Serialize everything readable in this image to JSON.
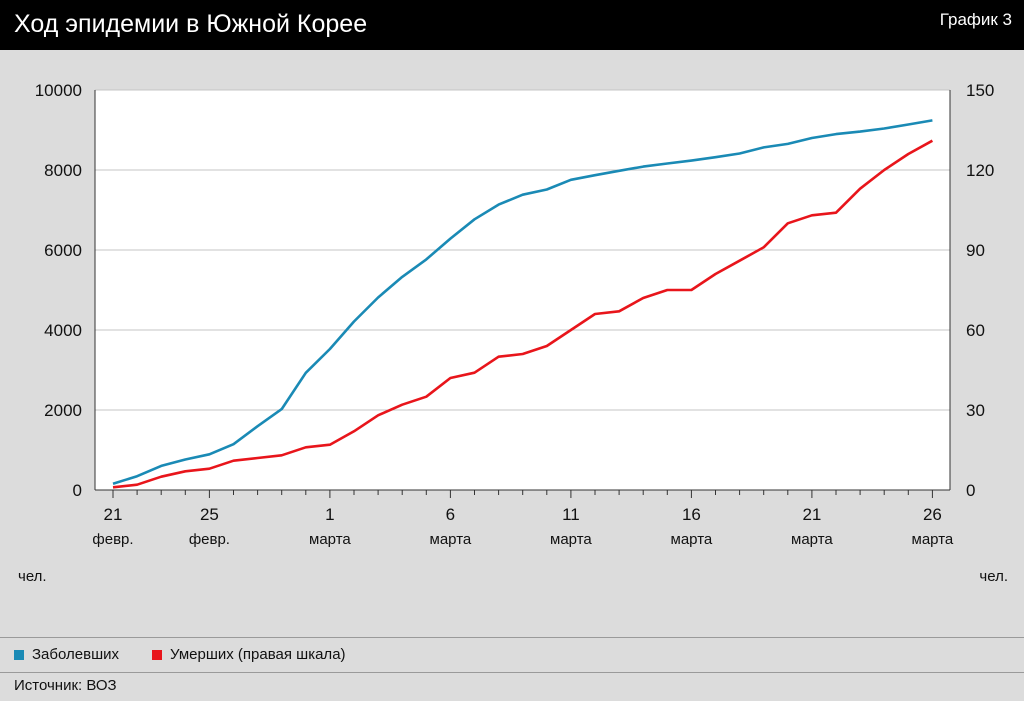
{
  "header": {
    "title": "Ход эпидемии в Южной Корее",
    "badge": "График 3"
  },
  "footer": {
    "source": "Источник: ВОЗ"
  },
  "colors": {
    "infected": "#1a8ab5",
    "deaths": "#e8151b"
  },
  "chart_data": {
    "type": "line",
    "y_left": {
      "label": "чел.",
      "ticks": [
        "0",
        "2000",
        "4000",
        "6000",
        "8000",
        "10000"
      ],
      "range": [
        0,
        10000
      ]
    },
    "y_right": {
      "label": "чел.",
      "ticks": [
        "0",
        "30",
        "60",
        "90",
        "120",
        "150"
      ],
      "range": [
        0,
        150
      ]
    },
    "x_ticks": [
      {
        "day": "21",
        "month": "февр."
      },
      {
        "day": "25",
        "month": "февр."
      },
      {
        "day": "1",
        "month": "марта"
      },
      {
        "day": "6",
        "month": "марта"
      },
      {
        "day": "11",
        "month": "марта"
      },
      {
        "day": "16",
        "month": "марта"
      },
      {
        "day": "21",
        "month": "марта"
      },
      {
        "day": "26",
        "month": "марта"
      }
    ],
    "x_dates": [
      "21 февр.",
      "22 февр.",
      "23 февр.",
      "24 февр.",
      "25 февр.",
      "26 февр.",
      "27 февр.",
      "28 февр.",
      "29 февр.",
      "1 марта",
      "2 марта",
      "3 марта",
      "4 марта",
      "5 марта",
      "6 марта",
      "7 марта",
      "8 марта",
      "9 марта",
      "10 марта",
      "11 марта",
      "12 марта",
      "13 марта",
      "14 марта",
      "15 марта",
      "16 марта",
      "17 марта",
      "18 марта",
      "19 марта",
      "20 марта",
      "21 марта",
      "22 марта",
      "23 марта",
      "24 марта",
      "25 марта",
      "26 марта"
    ],
    "series": [
      {
        "name": "Заболевших",
        "axis": "left",
        "values": [
          156,
          346,
          602,
          763,
          893,
          1146,
          1595,
          2022,
          2931,
          3526,
          4212,
          4812,
          5328,
          5766,
          6284,
          6767,
          7134,
          7382,
          7513,
          7755,
          7869,
          7979,
          8086,
          8162,
          8236,
          8320,
          8413,
          8565,
          8652,
          8799,
          8897,
          8961,
          9037,
          9137,
          9241
        ]
      },
      {
        "name": "Умерших (правая шкала)",
        "axis": "right",
        "values": [
          1,
          2,
          5,
          7,
          8,
          11,
          12,
          13,
          16,
          17,
          22,
          28,
          32,
          35,
          42,
          44,
          50,
          51,
          54,
          60,
          66,
          67,
          72,
          75,
          75,
          81,
          86,
          91,
          100,
          103,
          104,
          113,
          120,
          126,
          131
        ]
      }
    ],
    "grid": "horizontal",
    "legend": "bottom-left"
  }
}
